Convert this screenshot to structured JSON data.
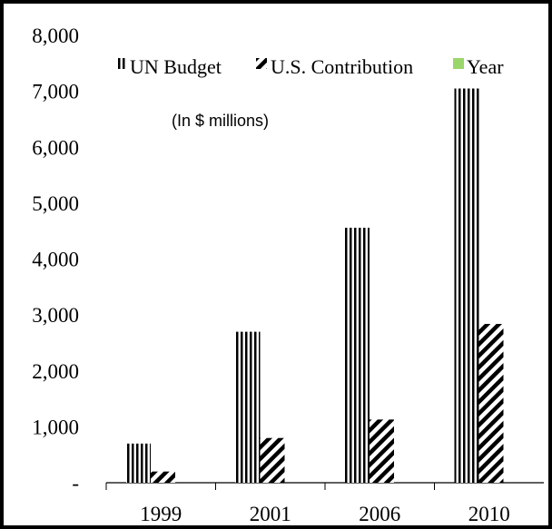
{
  "chart_data": {
    "type": "bar",
    "title": "",
    "note": "(In $ millions)",
    "categories": [
      "1999",
      "2001",
      "2006",
      "2010"
    ],
    "series": [
      {
        "name": "UN Budget",
        "values": [
          700,
          2700,
          4560,
          7050
        ],
        "pattern": "vertical-stripes"
      },
      {
        "name": "U.S. Contribution",
        "values": [
          200,
          800,
          1130,
          2840
        ],
        "pattern": "diagonal-stripes"
      },
      {
        "name": "Year",
        "values": [
          0,
          0,
          0,
          0
        ],
        "color": "#9bd66b"
      }
    ],
    "ylim": [
      0,
      8000
    ],
    "yticks": [
      "-",
      "1,000",
      "2,000",
      "3,000",
      "4,000",
      "5,000",
      "6,000",
      "7,000",
      "8,000"
    ],
    "grid": false,
    "legend_position": "top"
  }
}
